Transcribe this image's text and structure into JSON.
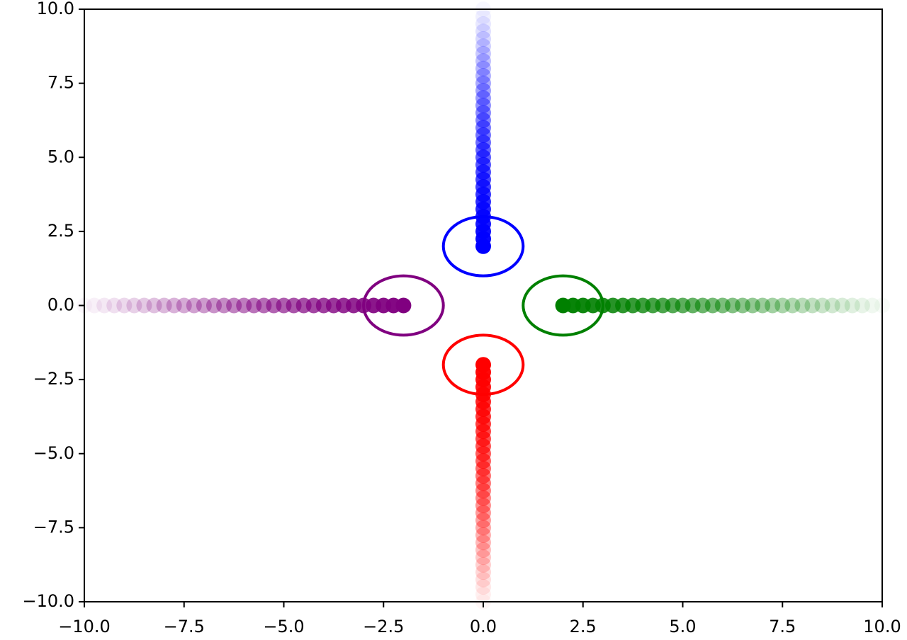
{
  "chart_data": {
    "type": "scatter",
    "xlim": [
      -10,
      10
    ],
    "ylim": [
      -10,
      10
    ],
    "xticks": [
      {
        "value": -10,
        "label": "−10.0"
      },
      {
        "value": -7.5,
        "label": "−7.5"
      },
      {
        "value": -5,
        "label": "−5.0"
      },
      {
        "value": -2.5,
        "label": "−2.5"
      },
      {
        "value": 0,
        "label": "0.0"
      },
      2.5,
      {
        "value": 5,
        "label": "5.0"
      },
      7.5,
      {
        "value": 10,
        "label": "10.0"
      }
    ],
    "yticks": [
      {
        "value": -10,
        "label": "−10.0"
      },
      {
        "value": -7.5,
        "label": "−7.5"
      },
      {
        "value": -5,
        "label": "−5.0"
      },
      {
        "value": -2.5,
        "label": "−2.5"
      },
      {
        "value": 0,
        "label": "0.0"
      },
      2.5,
      {
        "value": 5,
        "label": "5.0"
      },
      7.5,
      {
        "value": 10,
        "label": "10.0"
      }
    ],
    "series": [
      {
        "color": "#0000ff",
        "x": [
          0,
          0,
          0,
          0,
          0,
          0,
          0,
          0,
          0,
          0,
          0,
          0,
          0,
          0,
          0,
          0,
          0,
          0,
          0,
          0,
          0,
          0,
          0,
          0,
          0,
          0,
          0,
          0,
          0,
          0,
          0,
          0,
          0
        ],
        "values": [
          2,
          2.25,
          2.5,
          2.75,
          3,
          3.25,
          3.5,
          3.75,
          4,
          4.25,
          4.5,
          4.75,
          5,
          5.25,
          5.5,
          5.75,
          6,
          6.25,
          6.5,
          6.75,
          7,
          7.25,
          7.5,
          7.75,
          8,
          8.25,
          8.5,
          8.75,
          9,
          9.25,
          9.5,
          9.75,
          10
        ]
      },
      {
        "color": "#ff0000",
        "x": [
          0,
          0,
          0,
          0,
          0,
          0,
          0,
          0,
          0,
          0,
          0,
          0,
          0,
          0,
          0,
          0,
          0,
          0,
          0,
          0,
          0,
          0,
          0,
          0,
          0,
          0,
          0,
          0,
          0,
          0,
          0,
          0,
          0
        ],
        "values": [
          -2,
          -2.25,
          -2.5,
          -2.75,
          -3,
          -3.25,
          -3.5,
          -3.75,
          -4,
          -4.25,
          -4.5,
          -4.75,
          -5,
          -5.25,
          -5.5,
          -5.75,
          -6,
          -6.25,
          -6.5,
          -6.75,
          -7,
          -7.25,
          -7.5,
          -7.75,
          -8,
          -8.25,
          -8.5,
          -8.75,
          -9,
          -9.25,
          -9.5,
          -9.75,
          -10
        ]
      },
      {
        "color": "#008000",
        "x": [
          2,
          2.25,
          2.5,
          2.75,
          3,
          3.25,
          3.5,
          3.75,
          4,
          4.25,
          4.5,
          4.75,
          5,
          5.25,
          5.5,
          5.75,
          6,
          6.25,
          6.5,
          6.75,
          7,
          7.25,
          7.5,
          7.75,
          8,
          8.25,
          8.5,
          8.75,
          9,
          9.25,
          9.5,
          9.75,
          10
        ],
        "values": [
          0,
          0,
          0,
          0,
          0,
          0,
          0,
          0,
          0,
          0,
          0,
          0,
          0,
          0,
          0,
          0,
          0,
          0,
          0,
          0,
          0,
          0,
          0,
          0,
          0,
          0,
          0,
          0,
          0,
          0,
          0,
          0,
          0
        ]
      },
      {
        "color": "#800080",
        "x": [
          -2,
          -2.25,
          -2.5,
          -2.75,
          -3,
          -3.25,
          -3.5,
          -3.75,
          -4,
          -4.25,
          -4.5,
          -4.75,
          -5,
          -5.25,
          -5.5,
          -5.75,
          -6,
          -6.25,
          -6.5,
          -6.75,
          -7,
          -7.25,
          -7.5,
          -7.75,
          -8,
          -8.25,
          -8.5,
          -8.75,
          -9,
          -9.25,
          -9.5,
          -9.75,
          -10
        ],
        "values": [
          0,
          0,
          0,
          0,
          0,
          0,
          0,
          0,
          0,
          0,
          0,
          0,
          0,
          0,
          0,
          0,
          0,
          0,
          0,
          0,
          0,
          0,
          0,
          0,
          0,
          0,
          0,
          0,
          0,
          0,
          0,
          0,
          0
        ]
      }
    ],
    "circles": [
      {
        "center": [
          0,
          2
        ],
        "radius": 1,
        "color": "#0000ff"
      },
      {
        "center": [
          0,
          -2
        ],
        "radius": 1,
        "color": "#ff0000"
      },
      {
        "center": [
          2,
          0
        ],
        "radius": 1,
        "color": "#008000"
      },
      {
        "center": [
          -2,
          0
        ],
        "radius": 1,
        "color": "#800080"
      }
    ]
  }
}
